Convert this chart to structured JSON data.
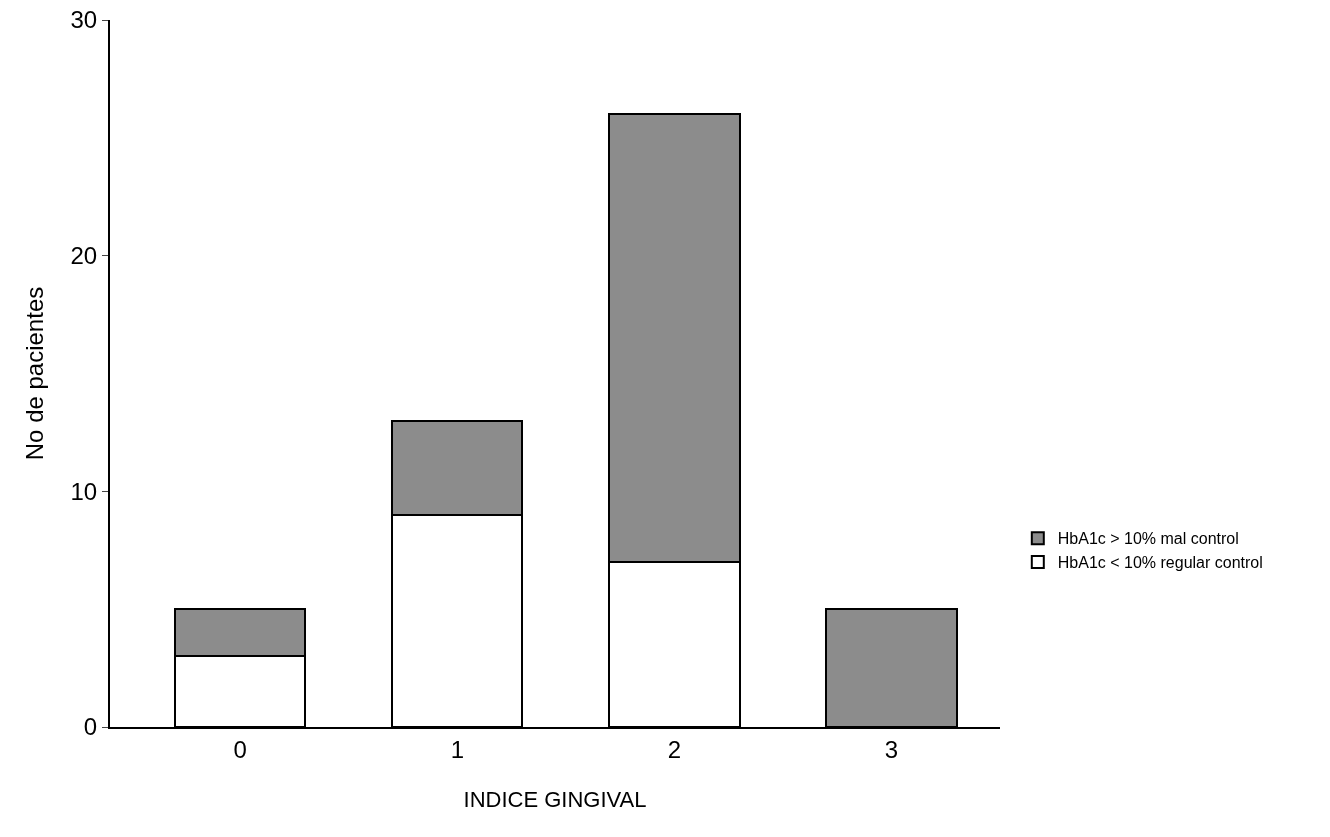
{
  "chart_data": {
    "type": "bar",
    "stacked": true,
    "xlabel": "INDICE GINGIVAL",
    "ylabel": "No de pacientes",
    "categories": [
      "0",
      "1",
      "2",
      "3"
    ],
    "series": [
      {
        "name": "HbA1c < 10% regular control",
        "color": "#ffffff",
        "values": [
          3,
          9,
          7,
          0
        ]
      },
      {
        "name": "HbA1c > 10% mal control",
        "color": "#8c8c8c",
        "values": [
          2,
          4,
          19,
          5
        ]
      }
    ],
    "ylim": [
      0,
      30
    ],
    "yticks": [
      0,
      10,
      20,
      30
    ],
    "grid": false,
    "legend": "right"
  }
}
